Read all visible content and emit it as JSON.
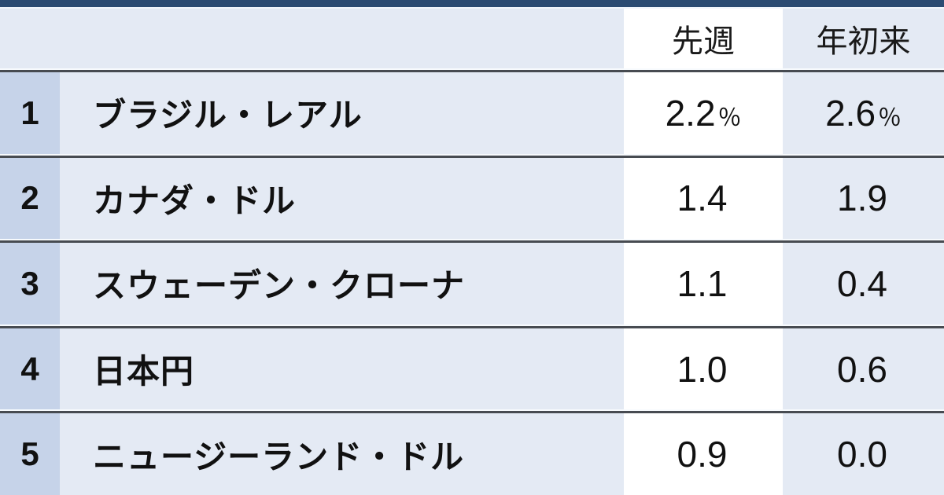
{
  "chart_data": {
    "type": "table",
    "columns": [
      "先週",
      "年初来"
    ],
    "rows": [
      {
        "rank": "1",
        "name": "ブラジル・レアル",
        "last_week": "2.2",
        "last_week_unit": "％",
        "ytd": "2.6",
        "ytd_unit": "％"
      },
      {
        "rank": "2",
        "name": "カナダ・ドル",
        "last_week": "1.4",
        "last_week_unit": "",
        "ytd": "1.9",
        "ytd_unit": ""
      },
      {
        "rank": "3",
        "name": "スウェーデン・クローナ",
        "last_week": "1.1",
        "last_week_unit": "",
        "ytd": "0.4",
        "ytd_unit": ""
      },
      {
        "rank": "4",
        "name": "日本円",
        "last_week": "1.0",
        "last_week_unit": "",
        "ytd": "0.6",
        "ytd_unit": ""
      },
      {
        "rank": "5",
        "name": "ニュージーランド・ドル",
        "last_week": "0.9",
        "last_week_unit": "",
        "ytd": "0.0",
        "ytd_unit": ""
      }
    ],
    "layout": {
      "highlighted_column": "先週",
      "rank_column_header": "",
      "name_column_header": ""
    }
  },
  "colors": {
    "accent_bar": "#2b4b72",
    "background": "#e4eaf4",
    "rank_column": "#c6d3e9",
    "highlight_column": "#ffffff",
    "separator_dark": "#474b51",
    "separator_light": "#f7fafd",
    "text": "#111111"
  }
}
